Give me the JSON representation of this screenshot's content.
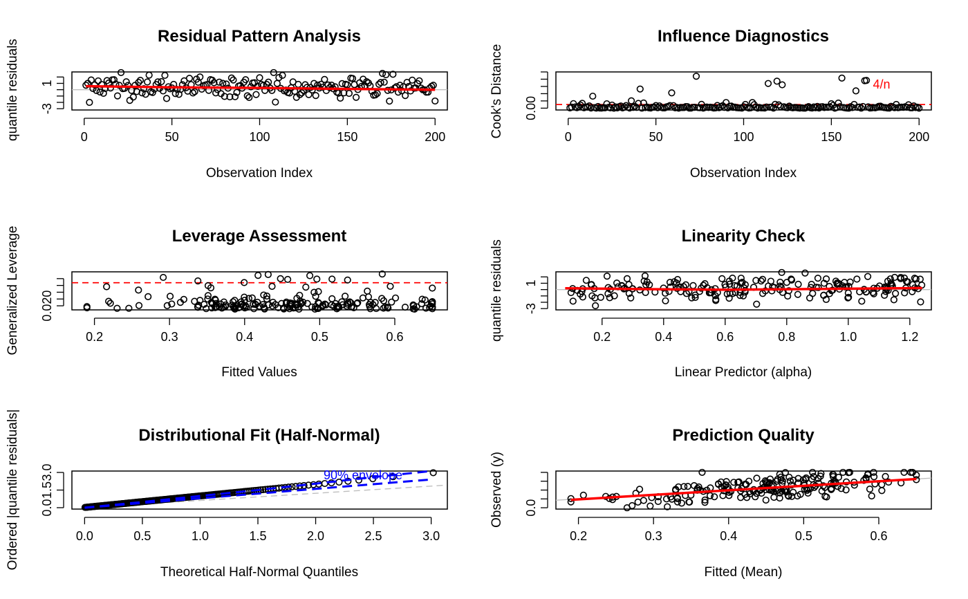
{
  "chart_data": [
    {
      "type": "scatter",
      "title": "Residual Pattern Analysis",
      "xlabel": "Observation Index",
      "ylabel": "quantile residuals",
      "xlim": [
        -7,
        207
      ],
      "ylim": [
        -3.2,
        2.8
      ],
      "xticks": [
        0,
        50,
        100,
        150,
        200
      ],
      "yticks": [
        -3,
        -2,
        -1,
        0,
        1,
        2
      ],
      "ytick_labels": [
        "-3",
        "",
        "",
        "",
        "1",
        ""
      ],
      "reference_lines": [
        {
          "y": 0,
          "color": "#bebebe",
          "dash": "solid"
        }
      ],
      "trend": {
        "x": [
          1,
          50,
          100,
          150,
          200
        ],
        "y": [
          0.55,
          0.38,
          0.28,
          0.12,
          0.0
        ],
        "color": "#ff0000"
      },
      "generator": "residuals",
      "n": 200
    },
    {
      "type": "scatter",
      "title": "Influence Diagnostics",
      "xlabel": "Observation Index",
      "ylabel": "Cook's Distance",
      "xlim": [
        -7,
        207
      ],
      "ylim": [
        -0.01,
        0.2
      ],
      "xticks": [
        0,
        50,
        100,
        150,
        200
      ],
      "yticks": [
        0,
        0.04,
        0.08,
        0.12,
        0.16,
        0.2
      ],
      "ytick_labels": [
        "0.00",
        "",
        "",
        "",
        "",
        ""
      ],
      "reference_lines": [
        {
          "y": 0.02,
          "color": "#ff0000",
          "dash": "dashed",
          "label": "4/n"
        }
      ],
      "generator": "cooks",
      "n": 200
    },
    {
      "type": "scatter",
      "title": "Leverage Assessment",
      "xlabel": "Fitted Values",
      "ylabel": "Generalized Leverage",
      "xlim": [
        0.17,
        0.67
      ],
      "ylim": [
        0.017,
        0.045
      ],
      "xticks": [
        0.2,
        0.3,
        0.4,
        0.5,
        0.6
      ],
      "yticks": [
        0.02,
        0.025,
        0.03,
        0.035,
        0.04
      ],
      "ytick_labels": [
        "0.020",
        "",
        "",
        "",
        ""
      ],
      "reference_lines": [
        {
          "y": 0.037,
          "color": "#ff0000",
          "dash": "dashed"
        }
      ],
      "generator": "leverage",
      "n": 200
    },
    {
      "type": "scatter",
      "title": "Linearity Check",
      "xlabel": "Linear Predictor (alpha)",
      "ylabel": "quantile residuals",
      "xlim": [
        0.05,
        1.27
      ],
      "ylim": [
        -3.2,
        2.8
      ],
      "xticks": [
        0.2,
        0.4,
        0.6,
        0.8,
        1.0,
        1.2
      ],
      "xtick_labels": [
        "0.2",
        "0.4",
        "0.6",
        "0.8",
        "1.0",
        "1.2"
      ],
      "yticks": [
        -3,
        -2,
        -1,
        0,
        1,
        2
      ],
      "ytick_labels": [
        "-3",
        "",
        "",
        "",
        "1",
        ""
      ],
      "reference_lines": [
        {
          "y": 0,
          "color": "#bebebe",
          "dash": "solid"
        }
      ],
      "trend": {
        "x": [
          0.08,
          0.4,
          0.6,
          0.9,
          1.24
        ],
        "y": [
          0.2,
          0.05,
          -0.02,
          0.1,
          0.25
        ],
        "color": "#ff0000"
      },
      "generator": "linearity",
      "n": 200
    },
    {
      "type": "scatter",
      "title": "Distributional Fit (Half-Normal)",
      "xlabel": "Theoretical Half-Normal Quantiles",
      "ylabel": "Ordered |quantile residuals|",
      "xlim": [
        -0.11,
        3.14
      ],
      "ylim": [
        -0.12,
        3.12
      ],
      "xticks": [
        0,
        0.5,
        1.0,
        1.5,
        2.0,
        2.5,
        3.0
      ],
      "xtick_labels": [
        "0.0",
        "0.5",
        "1.0",
        "1.5",
        "2.0",
        "2.5",
        "3.0"
      ],
      "yticks": [
        0,
        1.5,
        3.0
      ],
      "ytick_labels": [
        "0.0",
        "1.5",
        "3.0"
      ],
      "reference_lines": [
        {
          "x1": 0,
          "y1": 0,
          "x2": 3.1,
          "y2": 1.9,
          "color": "#bebebe",
          "dash": "dashed"
        }
      ],
      "envelope": {
        "label": "90% envelope",
        "color": "#0000ff",
        "x": [
          0,
          0.5,
          1.0,
          1.5,
          2.0,
          2.5,
          3.0
        ],
        "lower": [
          0,
          0.4,
          0.8,
          1.2,
          1.6,
          2.0,
          2.4
        ],
        "upper": [
          0,
          0.48,
          1.0,
          1.5,
          2.05,
          2.6,
          3.3
        ]
      },
      "generator": "halfnormal",
      "n": 200
    },
    {
      "type": "scatter",
      "title": "Prediction Quality",
      "xlabel": "Fitted (Mean)",
      "ylabel": "Observed (y)",
      "xlim": [
        0.17,
        0.67
      ],
      "ylim": [
        -0.03,
        0.83
      ],
      "xticks": [
        0.2,
        0.3,
        0.4,
        0.5,
        0.6
      ],
      "yticks": [
        0,
        0.2,
        0.4,
        0.6,
        0.8
      ],
      "ytick_labels": [
        "0.0",
        "",
        "",
        "",
        ""
      ],
      "reference_lines": [
        {
          "x1": 0.17,
          "y1": 0.17,
          "x2": 0.67,
          "y2": 0.67,
          "color": "#bebebe",
          "dash": "solid"
        }
      ],
      "trend": {
        "x": [
          0.19,
          0.65
        ],
        "y": [
          0.18,
          0.65
        ],
        "color": "#ff0000"
      },
      "generator": "prediction",
      "n": 200
    }
  ]
}
